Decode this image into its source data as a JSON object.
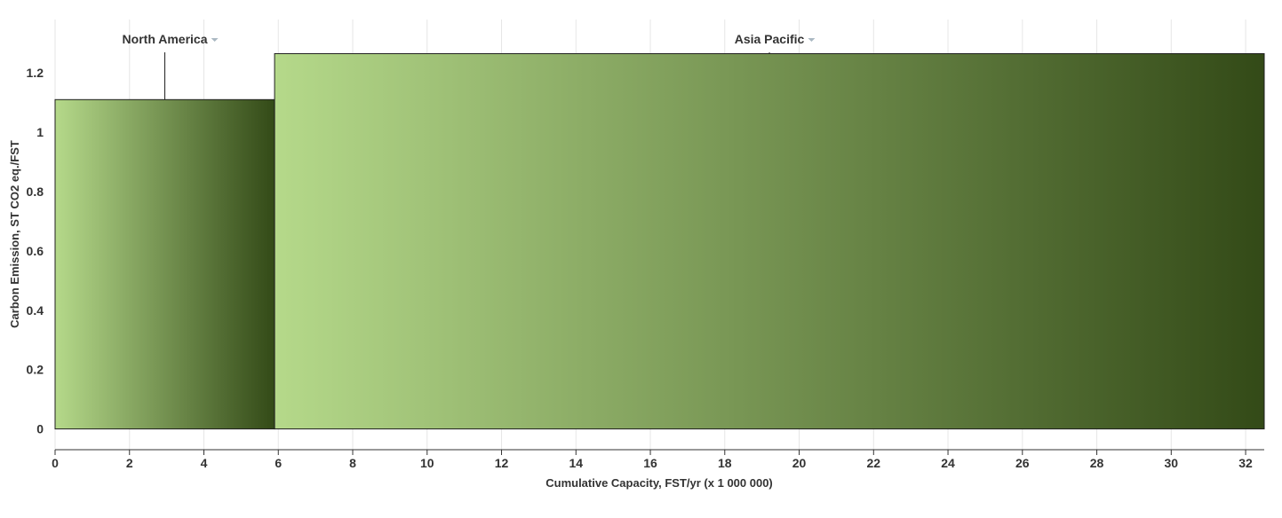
{
  "chart_data": {
    "type": "bar",
    "title": "",
    "xlabel": "Cumulative Capacity, FST/yr (x 1 000 000)",
    "ylabel": "Carbon Emission, ST CO2 eq./FST",
    "xlim": [
      0,
      32.5
    ],
    "ylim": [
      -0.07,
      1.38
    ],
    "x_ticks": [
      "0",
      "2",
      "4",
      "6",
      "8",
      "10",
      "12",
      "14",
      "16",
      "18",
      "20",
      "22",
      "24",
      "26",
      "28",
      "30",
      "32"
    ],
    "y_ticks": [
      "0",
      "0.2",
      "0.4",
      "0.6",
      "0.8",
      "1",
      "1.2"
    ],
    "grid": true,
    "series": [
      {
        "name": "North America",
        "x_start": 0,
        "x_end": 5.9,
        "value": 1.11,
        "label_x": 2.95,
        "color_start": "#b5d98a",
        "color_end": "#334a17"
      },
      {
        "name": "Asia Pacific",
        "x_start": 5.9,
        "x_end": 32.5,
        "value": 1.265,
        "label_x": 19.2,
        "color_start": "#b5d98a",
        "color_end": "#334a17"
      }
    ],
    "dropdown_icon_color": "#aab8c2",
    "grid_color": "#e6e6e6",
    "axis_color": "#333333"
  }
}
